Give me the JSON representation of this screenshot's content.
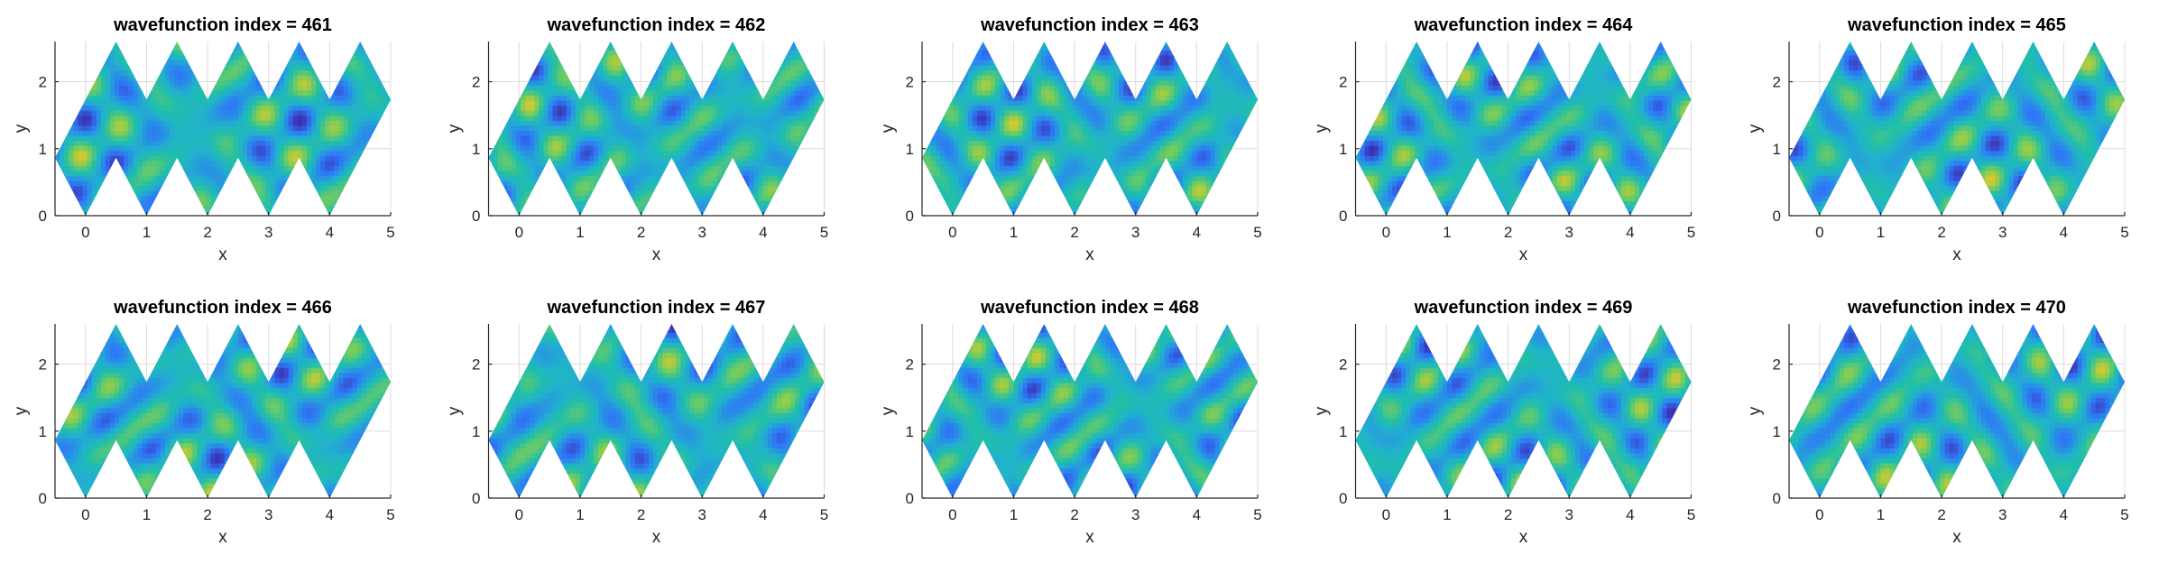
{
  "chart_data": [
    {
      "type": "heatmap",
      "title": "wavefunction index = 461",
      "xlabel": "x",
      "ylabel": "y",
      "xlim": [
        -0.5,
        5
      ],
      "ylim": [
        0,
        2.6
      ],
      "xticks": [
        "0",
        "1",
        "2",
        "3",
        "4",
        "5"
      ],
      "yticks": [
        "0",
        "1",
        "2"
      ],
      "grid": true,
      "colormap": "parula",
      "index": 461
    },
    {
      "type": "heatmap",
      "title": "wavefunction index = 462",
      "xlabel": "x",
      "ylabel": "y",
      "xlim": [
        -0.5,
        5
      ],
      "ylim": [
        0,
        2.6
      ],
      "xticks": [
        "0",
        "1",
        "2",
        "3",
        "4",
        "5"
      ],
      "yticks": [
        "0",
        "1",
        "2"
      ],
      "grid": true,
      "colormap": "parula",
      "index": 462
    },
    {
      "type": "heatmap",
      "title": "wavefunction index = 463",
      "xlabel": "x",
      "ylabel": "y",
      "xlim": [
        -0.5,
        5
      ],
      "ylim": [
        0,
        2.6
      ],
      "xticks": [
        "0",
        "1",
        "2",
        "3",
        "4",
        "5"
      ],
      "yticks": [
        "0",
        "1",
        "2"
      ],
      "grid": true,
      "colormap": "parula",
      "index": 463
    },
    {
      "type": "heatmap",
      "title": "wavefunction index = 464",
      "xlabel": "x",
      "ylabel": "y",
      "xlim": [
        -0.5,
        5
      ],
      "ylim": [
        0,
        2.6
      ],
      "xticks": [
        "0",
        "1",
        "2",
        "3",
        "4",
        "5"
      ],
      "yticks": [
        "0",
        "1",
        "2"
      ],
      "grid": true,
      "colormap": "parula",
      "index": 464
    },
    {
      "type": "heatmap",
      "title": "wavefunction index = 465",
      "xlabel": "x",
      "ylabel": "y",
      "xlim": [
        -0.5,
        5
      ],
      "ylim": [
        0,
        2.6
      ],
      "xticks": [
        "0",
        "1",
        "2",
        "3",
        "4",
        "5"
      ],
      "yticks": [
        "0",
        "1",
        "2"
      ],
      "grid": true,
      "colormap": "parula",
      "index": 465
    },
    {
      "type": "heatmap",
      "title": "wavefunction index = 466",
      "xlabel": "x",
      "ylabel": "y",
      "xlim": [
        -0.5,
        5
      ],
      "ylim": [
        0,
        2.6
      ],
      "xticks": [
        "0",
        "1",
        "2",
        "3",
        "4",
        "5"
      ],
      "yticks": [
        "0",
        "1",
        "2"
      ],
      "grid": true,
      "colormap": "parula",
      "index": 466
    },
    {
      "type": "heatmap",
      "title": "wavefunction index = 467",
      "xlabel": "x",
      "ylabel": "y",
      "xlim": [
        -0.5,
        5
      ],
      "ylim": [
        0,
        2.6
      ],
      "xticks": [
        "0",
        "1",
        "2",
        "3",
        "4",
        "5"
      ],
      "yticks": [
        "0",
        "1",
        "2"
      ],
      "grid": true,
      "colormap": "parula",
      "index": 467
    },
    {
      "type": "heatmap",
      "title": "wavefunction index = 468",
      "xlabel": "x",
      "ylabel": "y",
      "xlim": [
        -0.5,
        5
      ],
      "ylim": [
        0,
        2.6
      ],
      "xticks": [
        "0",
        "1",
        "2",
        "3",
        "4",
        "5"
      ],
      "yticks": [
        "0",
        "1",
        "2"
      ],
      "grid": true,
      "colormap": "parula",
      "index": 468
    },
    {
      "type": "heatmap",
      "title": "wavefunction index = 469",
      "xlabel": "x",
      "ylabel": "y",
      "xlim": [
        -0.5,
        5
      ],
      "ylim": [
        0,
        2.6
      ],
      "xticks": [
        "0",
        "1",
        "2",
        "3",
        "4",
        "5"
      ],
      "yticks": [
        "0",
        "1",
        "2"
      ],
      "grid": true,
      "colormap": "parula",
      "index": 469
    },
    {
      "type": "heatmap",
      "title": "wavefunction index = 470",
      "xlabel": "x",
      "ylabel": "y",
      "xlim": [
        -0.5,
        5
      ],
      "ylim": [
        0,
        2.6
      ],
      "xticks": [
        "0",
        "1",
        "2",
        "3",
        "4",
        "5"
      ],
      "yticks": [
        "0",
        "1",
        "2"
      ],
      "grid": true,
      "colormap": "parula",
      "index": 470
    }
  ],
  "colors": {
    "low": "#3e26a8",
    "mid": "#21b5c5",
    "high": "#fadc28",
    "axis": "#262626",
    "grid": "#dcdcdc"
  }
}
